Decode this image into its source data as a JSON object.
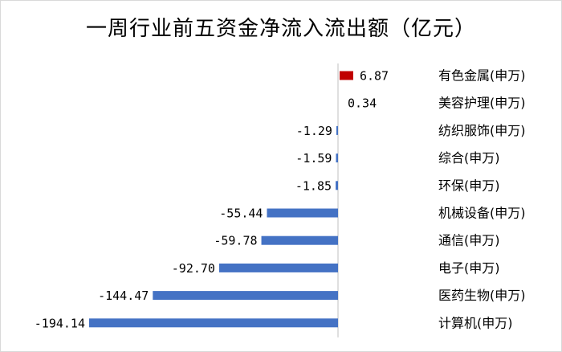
{
  "chart_data": {
    "type": "bar",
    "orientation": "horizontal",
    "title": "一周行业前五资金净流入流出额（亿元）",
    "categories": [
      "有色金属(申万)",
      "美容护理(申万)",
      "纺织服饰(申万)",
      "综合(申万)",
      "环保(申万)",
      "机械设备(申万)",
      "通信(申万)",
      "电子(申万)",
      "医药生物(申万)",
      "计算机(申万)"
    ],
    "values": [
      6.87,
      0.34,
      -1.29,
      -1.59,
      -1.85,
      -55.44,
      -59.78,
      -92.7,
      -144.47,
      -194.14
    ],
    "value_labels": [
      "6.87",
      "0.34",
      "-1.29",
      "-1.59",
      "-1.85",
      "-55.44",
      "-59.78",
      "-92.70",
      "-144.47",
      "-194.14"
    ],
    "colors": {
      "positive": "#c00000",
      "negative": "#4472c4",
      "axis": "#bfbfbf"
    },
    "grid": false,
    "legend": "none"
  }
}
